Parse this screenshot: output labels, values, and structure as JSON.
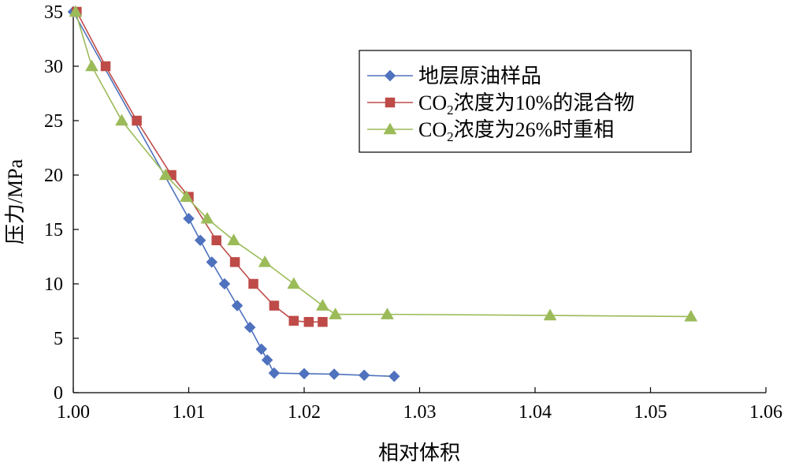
{
  "chart_data": {
    "type": "line",
    "title": "",
    "xlabel": "相对体积",
    "ylabel": "压力/MPa",
    "xlim": [
      1.0,
      1.06
    ],
    "ylim": [
      0,
      35
    ],
    "x_ticks": [
      "1.00",
      "1.01",
      "1.02",
      "1.03",
      "1.04",
      "1.05",
      "1.06"
    ],
    "y_ticks": [
      "0",
      "5",
      "10",
      "15",
      "20",
      "25",
      "30",
      "35"
    ],
    "grid": false,
    "legend_position": "top-right",
    "series": [
      {
        "name": "地层原油样品",
        "legend_main": "地层原油样品",
        "legend_sub": "",
        "legend_rest": "",
        "color": "#4F72BE",
        "marker": "diamond",
        "x": [
          1.0,
          1.01,
          1.011,
          1.012,
          1.0131,
          1.0142,
          1.0153,
          1.0163,
          1.0168,
          1.0174,
          1.02,
          1.0226,
          1.0252,
          1.0278
        ],
        "y": [
          35,
          16,
          14,
          12,
          10,
          8,
          6,
          4,
          3,
          1.8,
          1.75,
          1.7,
          1.6,
          1.5
        ]
      },
      {
        "name": "CO2浓度为10%的混合物",
        "legend_main": "CO",
        "legend_sub": "2",
        "legend_rest": "浓度为10%的混合物",
        "color": "#BE4B48",
        "marker": "square",
        "x": [
          1.0003,
          1.0028,
          1.0055,
          1.0085,
          1.01,
          1.0124,
          1.014,
          1.0156,
          1.0174,
          1.0191,
          1.0204,
          1.0216
        ],
        "y": [
          35,
          30,
          25,
          20,
          18,
          14,
          12,
          10,
          8,
          6.6,
          6.5,
          6.5
        ]
      },
      {
        "name": "CO2浓度为26%时重相",
        "legend_main": "CO",
        "legend_sub": "2",
        "legend_rest": "浓度为26%时重相",
        "color": "#9BBB59",
        "marker": "triangle",
        "x": [
          1.0002,
          1.0016,
          1.0042,
          1.008,
          1.0098,
          1.0116,
          1.0139,
          1.0166,
          1.0191,
          1.0216,
          1.0227,
          1.0272,
          1.0413,
          1.0535
        ],
        "y": [
          35,
          30,
          25,
          20,
          18,
          16,
          14,
          12,
          10,
          8,
          7.2,
          7.2,
          7.1,
          7.0
        ]
      }
    ]
  }
}
